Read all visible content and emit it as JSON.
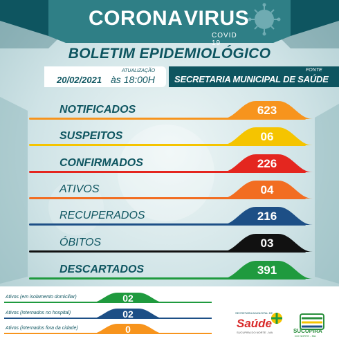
{
  "header": {
    "title_main": "CORONA",
    "title_accent": "VIRUS",
    "subtitle": "COVID 19"
  },
  "bulletin": {
    "title": "BOLETIM EPIDEMIOLÓGICO",
    "update_label": "ATUALIZAÇÃO",
    "date": "20/02/2021",
    "time": "às 18:00H",
    "source_label": "FONTE",
    "source": "SECRETARIA MUNICIPAL DE SAÚDE"
  },
  "stats": [
    {
      "label": "NOTIFICADOS",
      "value": "623",
      "color": "#f7941d",
      "bold": true
    },
    {
      "label": "SUSPEITOS",
      "value": "06",
      "color": "#f5c400",
      "bold": true
    },
    {
      "label": "CONFIRMADOS",
      "value": "226",
      "color": "#e4261f",
      "bold": true
    },
    {
      "label": "ATIVOS",
      "value": "04",
      "color": "#f26d21",
      "bold": false
    },
    {
      "label": "RECUPERADOS",
      "value": "216",
      "color": "#1d4f86",
      "bold": false
    },
    {
      "label": "ÓBITOS",
      "value": "03",
      "color": "#111111",
      "bold": false
    },
    {
      "label": "DESCARTADOS",
      "value": "391",
      "color": "#1f9a3e",
      "bold": true
    }
  ],
  "active_breakdown": [
    {
      "label": "Ativos (em isolamento domiciliar)",
      "value": "02",
      "color": "#1f9a3e"
    },
    {
      "label": "Ativos (internados no hospital)",
      "value": "02",
      "color": "#1d4f86"
    },
    {
      "label": "Ativos (internados fora da cidade)",
      "value": "0",
      "color": "#f7941d"
    }
  ],
  "logos": {
    "saude_small": "SECRETARIA MUNICIPAL DE",
    "saude": "Saúde",
    "saude_sub": "SUCUPIRA DO NORTE - MA",
    "sucupira": "SUCUPIRA",
    "sucupira_sub": "DO NORTE - MA"
  },
  "colors": {
    "primary": "#0e5560",
    "accent_teal": "#2f7f86"
  }
}
